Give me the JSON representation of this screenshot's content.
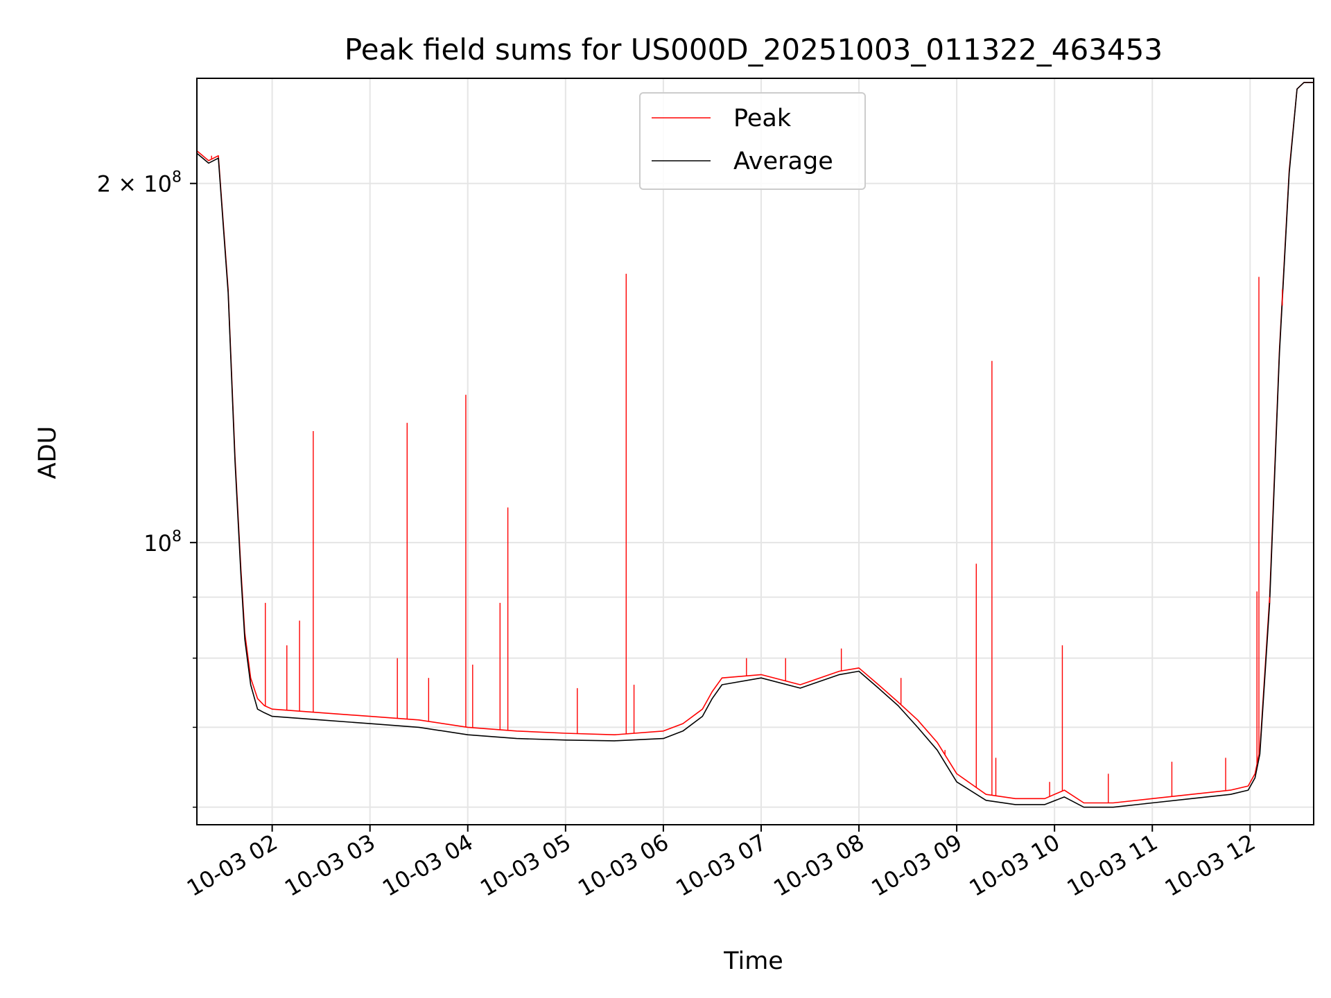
{
  "chart_data": {
    "type": "line",
    "title": "Peak field sums for US000D_20251003_011322_463453",
    "xlabel": "Time",
    "ylabel": "ADU",
    "yscale": "log",
    "ylim": [
      58000000,
      245000000
    ],
    "xlim": [
      1.23,
      12.65
    ],
    "grid": true,
    "legend_position": "top-center",
    "x_ticks": [
      {
        "value": 2,
        "label": "10-03 02"
      },
      {
        "value": 3,
        "label": "10-03 03"
      },
      {
        "value": 4,
        "label": "10-03 04"
      },
      {
        "value": 5,
        "label": "10-03 05"
      },
      {
        "value": 6,
        "label": "10-03 06"
      },
      {
        "value": 7,
        "label": "10-03 07"
      },
      {
        "value": 8,
        "label": "10-03 08"
      },
      {
        "value": 9,
        "label": "10-03 09"
      },
      {
        "value": 10,
        "label": "10-03 10"
      },
      {
        "value": 11,
        "label": "10-03 11"
      },
      {
        "value": 12,
        "label": "10-03 12"
      }
    ],
    "y_ticks_major": [
      {
        "value": 100000000,
        "base": "10",
        "exp": "8",
        "coef": ""
      },
      {
        "value": 200000000,
        "base": "10",
        "exp": "8",
        "coef": "2 × "
      }
    ],
    "y_ticks_minor": [
      60000000,
      70000000,
      80000000,
      90000000
    ],
    "series": [
      {
        "name": "Peak",
        "color": "#ff0000",
        "x": [
          1.23,
          1.35,
          1.45,
          1.55,
          1.62,
          1.68,
          1.72,
          1.78,
          1.85,
          1.92,
          2.0,
          2.5,
          3.0,
          3.5,
          4.0,
          4.5,
          5.0,
          5.5,
          6.0,
          6.2,
          6.4,
          6.5,
          6.6,
          7.0,
          7.4,
          7.8,
          8.0,
          8.2,
          8.4,
          8.6,
          8.8,
          9.0,
          9.3,
          9.6,
          9.9,
          10.1,
          10.3,
          10.6,
          11.0,
          11.4,
          11.8,
          11.98,
          12.05,
          12.1,
          12.2,
          12.3,
          12.4,
          12.48,
          12.55,
          12.65
        ],
        "values": [
          213000000,
          209000000,
          211000000,
          163000000,
          118000000,
          95000000,
          84000000,
          77000000,
          74000000,
          73000000,
          72500000,
          72000000,
          71500000,
          71000000,
          70000000,
          69500000,
          69200000,
          69000000,
          69500000,
          70500000,
          72500000,
          75000000,
          77000000,
          77500000,
          76000000,
          78000000,
          78500000,
          76000000,
          73500000,
          71000000,
          68000000,
          64000000,
          61500000,
          61000000,
          61000000,
          62000000,
          60500000,
          60500000,
          61000000,
          61500000,
          62000000,
          62500000,
          64000000,
          67000000,
          90000000,
          145000000,
          205000000,
          240000000,
          243000000,
          243000000
        ]
      },
      {
        "name": "Average",
        "color": "#000000",
        "x": [
          1.23,
          1.35,
          1.45,
          1.55,
          1.62,
          1.68,
          1.72,
          1.78,
          1.85,
          1.92,
          2.0,
          2.5,
          3.0,
          3.5,
          4.0,
          4.5,
          5.0,
          5.5,
          6.0,
          6.2,
          6.4,
          6.5,
          6.6,
          7.0,
          7.4,
          7.8,
          8.0,
          8.2,
          8.4,
          8.6,
          8.8,
          9.0,
          9.3,
          9.6,
          9.9,
          10.1,
          10.3,
          10.6,
          11.0,
          11.4,
          11.8,
          11.98,
          12.05,
          12.1,
          12.2,
          12.3,
          12.4,
          12.48,
          12.55,
          12.65
        ],
        "values": [
          212000000,
          208000000,
          210000000,
          162000000,
          117000000,
          94000000,
          83000000,
          76000000,
          72500000,
          72000000,
          71500000,
          71000000,
          70500000,
          70000000,
          69000000,
          68500000,
          68300000,
          68200000,
          68500000,
          69500000,
          71500000,
          74000000,
          76000000,
          77000000,
          75500000,
          77500000,
          78000000,
          75500000,
          73000000,
          70000000,
          67000000,
          63000000,
          60800000,
          60300000,
          60300000,
          61200000,
          60000000,
          60000000,
          60500000,
          61000000,
          61500000,
          62000000,
          63500000,
          66500000,
          89000000,
          144000000,
          204000000,
          240000000,
          243000000,
          243000000
        ]
      }
    ],
    "peak_spikes": [
      {
        "x": 1.38,
        "value": 211000000
      },
      {
        "x": 1.93,
        "value": 89000000
      },
      {
        "x": 2.15,
        "value": 82000000
      },
      {
        "x": 2.42,
        "value": 124000000
      },
      {
        "x": 2.28,
        "value": 86000000
      },
      {
        "x": 3.38,
        "value": 126000000
      },
      {
        "x": 3.28,
        "value": 80000000
      },
      {
        "x": 3.6,
        "value": 77000000
      },
      {
        "x": 3.98,
        "value": 133000000
      },
      {
        "x": 4.05,
        "value": 79000000
      },
      {
        "x": 4.33,
        "value": 89000000
      },
      {
        "x": 4.41,
        "value": 107000000
      },
      {
        "x": 5.12,
        "value": 75500000
      },
      {
        "x": 5.62,
        "value": 168000000
      },
      {
        "x": 5.7,
        "value": 76000000
      },
      {
        "x": 6.85,
        "value": 80000000
      },
      {
        "x": 7.25,
        "value": 80000000
      },
      {
        "x": 7.82,
        "value": 81500000
      },
      {
        "x": 8.43,
        "value": 77000000
      },
      {
        "x": 8.88,
        "value": 67000000
      },
      {
        "x": 9.2,
        "value": 96000000
      },
      {
        "x": 9.36,
        "value": 142000000
      },
      {
        "x": 9.4,
        "value": 66000000
      },
      {
        "x": 9.95,
        "value": 63000000
      },
      {
        "x": 10.08,
        "value": 82000000
      },
      {
        "x": 10.55,
        "value": 64000000
      },
      {
        "x": 11.2,
        "value": 65500000
      },
      {
        "x": 11.75,
        "value": 66000000
      },
      {
        "x": 12.09,
        "value": 167000000
      },
      {
        "x": 12.07,
        "value": 91000000
      },
      {
        "x": 12.2,
        "value": 89000000
      },
      {
        "x": 12.33,
        "value": 158000000
      }
    ]
  }
}
